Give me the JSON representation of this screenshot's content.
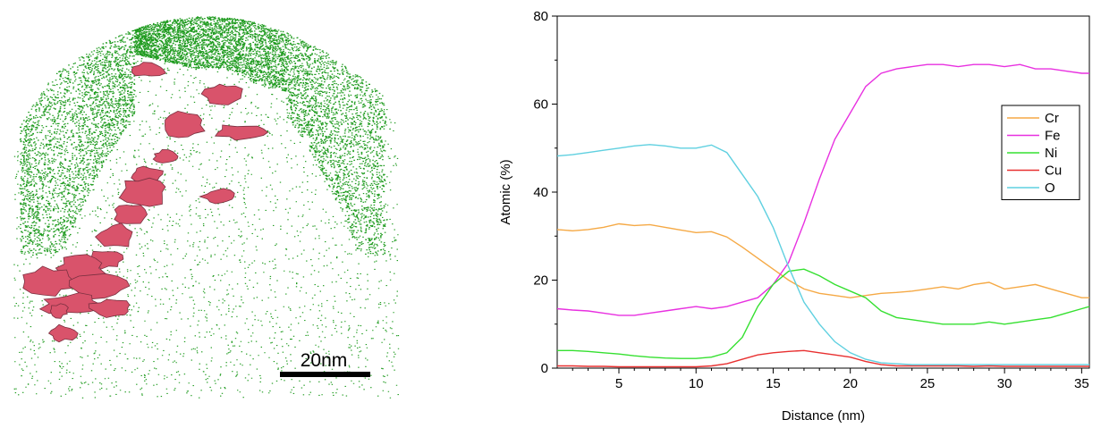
{
  "scale_bar": {
    "label": "20nm"
  },
  "colors": {
    "cluster": "#d9536b",
    "cluster_edge": "#7a3040",
    "matrix": "#1f9b1f"
  },
  "chart_data": {
    "type": "line",
    "xlabel": "Distance (nm)",
    "ylabel": "Atomic (%)",
    "xlim": [
      1,
      35.5
    ],
    "ylim": [
      0,
      80
    ],
    "x_ticks": [
      5,
      10,
      15,
      20,
      25,
      30,
      35
    ],
    "y_ticks": [
      0,
      20,
      40,
      60,
      80
    ],
    "grid": false,
    "legend_position": "right",
    "series": [
      {
        "name": "Cr",
        "color": "#f5a945",
        "points": [
          [
            1,
            31.5
          ],
          [
            2,
            31.2
          ],
          [
            3,
            31.5
          ],
          [
            4,
            32
          ],
          [
            5,
            32.8
          ],
          [
            6,
            32.4
          ],
          [
            7,
            32.6
          ],
          [
            8,
            32
          ],
          [
            9,
            31.4
          ],
          [
            10,
            30.8
          ],
          [
            11,
            31
          ],
          [
            12,
            29.8
          ],
          [
            13,
            27.5
          ],
          [
            14,
            25
          ],
          [
            15,
            22.5
          ],
          [
            16,
            20
          ],
          [
            17,
            18
          ],
          [
            18,
            17
          ],
          [
            19,
            16.5
          ],
          [
            20,
            16
          ],
          [
            21,
            16.5
          ],
          [
            22,
            17
          ],
          [
            23,
            17.2
          ],
          [
            24,
            17.5
          ],
          [
            25,
            18
          ],
          [
            26,
            18.5
          ],
          [
            27,
            18
          ],
          [
            28,
            19
          ],
          [
            29,
            19.5
          ],
          [
            30,
            18
          ],
          [
            31,
            18.5
          ],
          [
            32,
            19
          ],
          [
            33,
            18
          ],
          [
            34,
            17
          ],
          [
            35,
            16
          ],
          [
            35.5,
            16
          ]
        ]
      },
      {
        "name": "Fe",
        "color": "#e830e0",
        "points": [
          [
            1,
            13.5
          ],
          [
            2,
            13.2
          ],
          [
            3,
            13
          ],
          [
            4,
            12.5
          ],
          [
            5,
            12
          ],
          [
            6,
            12
          ],
          [
            7,
            12.5
          ],
          [
            8,
            13
          ],
          [
            9,
            13.5
          ],
          [
            10,
            14
          ],
          [
            11,
            13.5
          ],
          [
            12,
            14
          ],
          [
            13,
            15
          ],
          [
            14,
            16
          ],
          [
            15,
            19
          ],
          [
            16,
            24
          ],
          [
            17,
            33
          ],
          [
            18,
            43
          ],
          [
            19,
            52
          ],
          [
            20,
            58
          ],
          [
            21,
            64
          ],
          [
            22,
            67
          ],
          [
            23,
            68
          ],
          [
            24,
            68.5
          ],
          [
            25,
            69
          ],
          [
            26,
            69
          ],
          [
            27,
            68.5
          ],
          [
            28,
            69
          ],
          [
            29,
            69
          ],
          [
            30,
            68.5
          ],
          [
            31,
            69
          ],
          [
            32,
            68
          ],
          [
            33,
            68
          ],
          [
            34,
            67.5
          ],
          [
            35,
            67
          ],
          [
            35.5,
            67
          ]
        ]
      },
      {
        "name": "Ni",
        "color": "#35e030",
        "points": [
          [
            1,
            4
          ],
          [
            2,
            4
          ],
          [
            3,
            3.8
          ],
          [
            4,
            3.5
          ],
          [
            5,
            3.2
          ],
          [
            6,
            2.8
          ],
          [
            7,
            2.5
          ],
          [
            8,
            2.3
          ],
          [
            9,
            2.2
          ],
          [
            10,
            2.2
          ],
          [
            11,
            2.5
          ],
          [
            12,
            3.5
          ],
          [
            13,
            7
          ],
          [
            14,
            14
          ],
          [
            15,
            19
          ],
          [
            16,
            22
          ],
          [
            17,
            22.5
          ],
          [
            18,
            21
          ],
          [
            19,
            19
          ],
          [
            20,
            17.5
          ],
          [
            21,
            16
          ],
          [
            22,
            13
          ],
          [
            23,
            11.5
          ],
          [
            24,
            11
          ],
          [
            25,
            10.5
          ],
          [
            26,
            10
          ],
          [
            27,
            10
          ],
          [
            28,
            10
          ],
          [
            29,
            10.5
          ],
          [
            30,
            10
          ],
          [
            31,
            10.5
          ],
          [
            32,
            11
          ],
          [
            33,
            11.5
          ],
          [
            34,
            12.5
          ],
          [
            35,
            13.5
          ],
          [
            35.5,
            14
          ]
        ]
      },
      {
        "name": "Cu",
        "color": "#e83030",
        "points": [
          [
            1,
            0.5
          ],
          [
            2,
            0.5
          ],
          [
            3,
            0.4
          ],
          [
            4,
            0.4
          ],
          [
            5,
            0.3
          ],
          [
            6,
            0.3
          ],
          [
            7,
            0.3
          ],
          [
            8,
            0.3
          ],
          [
            9,
            0.3
          ],
          [
            10,
            0.3
          ],
          [
            11,
            0.5
          ],
          [
            12,
            1
          ],
          [
            13,
            2
          ],
          [
            14,
            3
          ],
          [
            15,
            3.5
          ],
          [
            16,
            3.8
          ],
          [
            17,
            4
          ],
          [
            18,
            3.5
          ],
          [
            19,
            3
          ],
          [
            20,
            2.5
          ],
          [
            21,
            1.5
          ],
          [
            22,
            0.8
          ],
          [
            23,
            0.5
          ],
          [
            24,
            0.5
          ],
          [
            25,
            0.5
          ],
          [
            26,
            0.5
          ],
          [
            27,
            0.5
          ],
          [
            28,
            0.4
          ],
          [
            29,
            0.5
          ],
          [
            30,
            0.4
          ],
          [
            31,
            0.4
          ],
          [
            32,
            0.4
          ],
          [
            33,
            0.4
          ],
          [
            34,
            0.4
          ],
          [
            35,
            0.4
          ],
          [
            35.5,
            0.4
          ]
        ]
      },
      {
        "name": "O",
        "color": "#5fd0e0",
        "points": [
          [
            1,
            48.2
          ],
          [
            2,
            48.5
          ],
          [
            3,
            49
          ],
          [
            4,
            49.5
          ],
          [
            5,
            50
          ],
          [
            6,
            50.5
          ],
          [
            7,
            50.8
          ],
          [
            8,
            50.5
          ],
          [
            9,
            50
          ],
          [
            10,
            50
          ],
          [
            11,
            50.7
          ],
          [
            12,
            49
          ],
          [
            13,
            44
          ],
          [
            14,
            39
          ],
          [
            15,
            32
          ],
          [
            16,
            23
          ],
          [
            17,
            15
          ],
          [
            18,
            10
          ],
          [
            19,
            6
          ],
          [
            20,
            3.5
          ],
          [
            21,
            2
          ],
          [
            22,
            1.2
          ],
          [
            23,
            1
          ],
          [
            24,
            0.8
          ],
          [
            25,
            0.8
          ],
          [
            26,
            0.8
          ],
          [
            27,
            0.8
          ],
          [
            28,
            0.8
          ],
          [
            29,
            0.8
          ],
          [
            30,
            0.8
          ],
          [
            31,
            0.8
          ],
          [
            32,
            0.8
          ],
          [
            33,
            0.8
          ],
          [
            34,
            0.8
          ],
          [
            35,
            0.8
          ],
          [
            35.5,
            0.8
          ]
        ]
      }
    ]
  }
}
